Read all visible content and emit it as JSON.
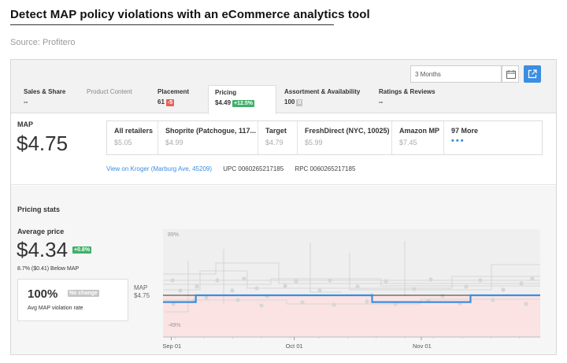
{
  "doc": {
    "title": "Detect MAP policy violations with an eCommerce analytics tool",
    "source": "Source: Profitero"
  },
  "toolbar": {
    "date_range_value": "3 Months",
    "calendar_icon": "calendar-icon",
    "external_icon": "external-link-icon",
    "accent": "#3b8ee0"
  },
  "tabs": [
    {
      "label": "Sales & Share",
      "value": "--"
    },
    {
      "label": "Product Content",
      "value": ""
    },
    {
      "label": "Placement",
      "value": "61",
      "badge": "-5"
    },
    {
      "label": "Pricing",
      "value": "$4.49",
      "badge": "+12.5%"
    },
    {
      "label": "Assortment & Availability",
      "value": "100",
      "badge": "0"
    },
    {
      "label": "Ratings & Reviews",
      "value": "--"
    }
  ],
  "map": {
    "label": "MAP",
    "price": "$4.75",
    "retailers": [
      {
        "name": "All retailers",
        "price": "$5.05"
      },
      {
        "name": "Shoprite (Patchogue, 117...",
        "price": "$4.99"
      },
      {
        "name": "Target",
        "price": "$4.79"
      },
      {
        "name": "FreshDirect (NYC, 10025)",
        "price": "$5.99"
      },
      {
        "name": "Amazon MP",
        "price": "$7.45"
      },
      {
        "name": "97 More",
        "price": "•••"
      }
    ],
    "kroger_link": "View on Kroger (Marburg Ave, 45209)",
    "upc": "UPC 0060265217185",
    "rpc": "RPC 0060265217185"
  },
  "stats": {
    "title": "Pricing stats",
    "avg_label": "Average price",
    "avg_price": "$4.34",
    "avg_change": "+0.8%",
    "below_map": "8.7% ($0.41) Below MAP",
    "violation_pct": "100%",
    "violation_badge": "No change",
    "violation_label": "Avg MAP violation rate"
  },
  "chart_data": {
    "type": "line",
    "map_label": "MAP",
    "map_value_label": "$4.75",
    "y_top_label": "89%",
    "y_bottom_label": "-49%",
    "x_ticks": [
      "Sep 01",
      "Oct 01",
      "Nov 01"
    ],
    "x_start": "2017-08-30",
    "x_end": "2017-11-30",
    "series": [
      {
        "color": "#3b8ee0",
        "points": [
          [
            "2017-08-30",
            -0.08
          ],
          [
            "2017-09-07",
            -0.08
          ],
          [
            "2017-09-07",
            0.0
          ],
          [
            "2017-10-20",
            0.0
          ],
          [
            "2017-10-20",
            -0.08
          ],
          [
            "2017-11-13",
            -0.08
          ],
          [
            "2017-11-13",
            0.0
          ],
          [
            "2017-11-30",
            0.0
          ]
        ]
      }
    ],
    "ylim": [
      -0.49,
      0.89
    ],
    "violation_band_color": "#fbe3e3",
    "map_line_color": "#333333"
  }
}
